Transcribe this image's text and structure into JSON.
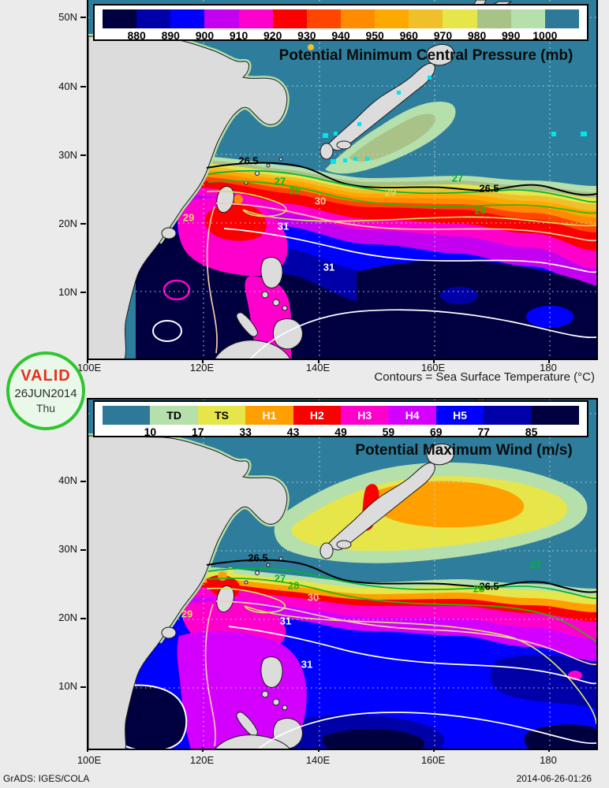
{
  "map_colors": {
    "ocean": "#2e7d9c",
    "land": "#dcdcdc",
    "coast": "#1a1a1a",
    "obs_dot": "#00e4ee"
  },
  "stamp": {
    "line1": "VALID",
    "line2": "26JUN2014",
    "line3": "Thu"
  },
  "footer": {
    "left": "GrADS: IGES/COLA",
    "right": "2014-06-26-01:26"
  },
  "pressure_panel": {
    "title": "Potential Minimum Central Pressure (mb)",
    "contour_note": "Contours = Sea Surface Temperature (°C)",
    "legend": {
      "colors": [
        "#000040",
        "#0000a8",
        "#0000ff",
        "#c400f0",
        "#ff00cc",
        "#fa0000",
        "#ff4500",
        "#ff8c00",
        "#ffa800",
        "#f0c02a",
        "#e6e64b",
        "#a9c287",
        "#b5dfab",
        "#2e7898"
      ],
      "ticks": [
        "880",
        "890",
        "900",
        "910",
        "920",
        "930",
        "940",
        "950",
        "960",
        "970",
        "980",
        "990",
        "1000"
      ]
    },
    "yticks": [
      "50N",
      "40N",
      "30N",
      "20N",
      "10N"
    ],
    "xticks": [
      "100E",
      "120E",
      "140E",
      "160E",
      "180"
    ],
    "contours": {
      "levels": [
        "26.5",
        "27",
        "28",
        "29",
        "30",
        "31"
      ],
      "colors": {
        "sst265": "#000000",
        "sst27": "#00b432",
        "sst28": "#2cb400",
        "sst29": "#d2e060",
        "sst30": "#f8c8ae",
        "sst31": "#ffffff"
      }
    }
  },
  "wind_panel": {
    "title": "Potential Maximum Wind (m/s)",
    "legend": {
      "colors": [
        "#2e7898",
        "#b5dfab",
        "#e6e64b",
        "#ffa000",
        "#fa0000",
        "#ff00cc",
        "#d400ff",
        "#0000ff",
        "#0000a8",
        "#000040"
      ],
      "categories": [
        "",
        "TD",
        "TS",
        "H1",
        "H2",
        "H3",
        "H4",
        "H5",
        "",
        ""
      ],
      "ticks": [
        "10",
        "17",
        "33",
        "43",
        "49",
        "59",
        "69",
        "77",
        "85"
      ]
    },
    "yticks": [
      "40N",
      "30N",
      "20N",
      "10N"
    ],
    "xticks": [
      "100E",
      "120E",
      "140E",
      "160E",
      "180"
    ],
    "contours": {
      "levels": [
        "26.5",
        "27",
        "28",
        "29",
        "30",
        "31"
      ],
      "colors": {
        "sst265": "#000000",
        "sst27": "#00b432",
        "sst28": "#2cb400",
        "sst29": "#d2e060",
        "sst30": "#f8c8ae",
        "sst31": "#ffffff"
      }
    }
  },
  "chart_data": [
    {
      "type": "heatmap",
      "title": "Potential Minimum Central Pressure (mb)",
      "region": {
        "lon_range": [
          "100E",
          "188E"
        ],
        "lat_range": [
          "0N",
          "52N"
        ]
      },
      "legend_values": [
        880,
        890,
        900,
        910,
        920,
        930,
        940,
        950,
        960,
        970,
        980,
        990,
        1000
      ],
      "legend_colors": [
        "#000040",
        "#0000a8",
        "#0000ff",
        "#c400f0",
        "#ff00cc",
        "#fa0000",
        "#ff4500",
        "#ff8c00",
        "#ffa800",
        "#f0c02a",
        "#e6e64b",
        "#a9c287",
        "#b5dfab",
        "#2e7898"
      ],
      "overlay_contours": {
        "variable": "Sea Surface Temperature (°C)",
        "levels": [
          26.5,
          27,
          28,
          29,
          30,
          31
        ]
      },
      "valid_date": "26JUN2014 Thu"
    },
    {
      "type": "heatmap",
      "title": "Potential Maximum Wind (m/s)",
      "region": {
        "lon_range": [
          "100E",
          "188E"
        ],
        "lat_range": [
          "0N",
          "52N"
        ]
      },
      "categories": [
        "TD",
        "TS",
        "H1",
        "H2",
        "H3",
        "H4",
        "H5"
      ],
      "legend_values": [
        10,
        17,
        33,
        43,
        49,
        59,
        69,
        77,
        85
      ],
      "legend_colors": [
        "#2e7898",
        "#b5dfab",
        "#e6e64b",
        "#ffa000",
        "#fa0000",
        "#ff00cc",
        "#d400ff",
        "#0000ff",
        "#0000a8",
        "#000040"
      ],
      "overlay_contours": {
        "variable": "Sea Surface Temperature (°C)",
        "levels": [
          26.5,
          27,
          28,
          29,
          30,
          31
        ]
      },
      "valid_date": "26JUN2014 Thu"
    }
  ]
}
